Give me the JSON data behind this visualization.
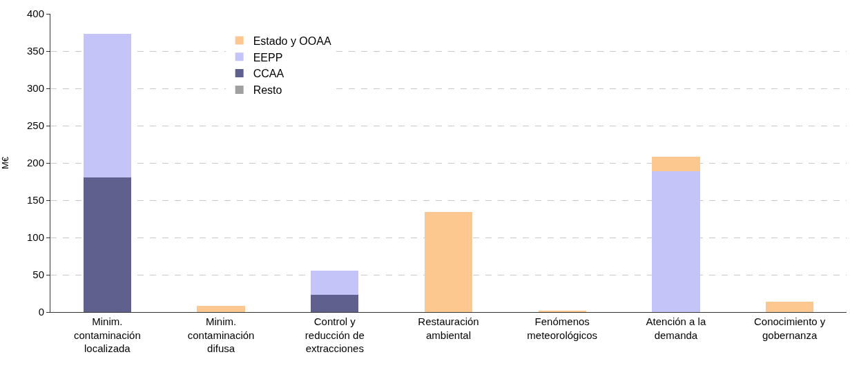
{
  "chart_data": {
    "type": "bar",
    "stacked": true,
    "ylabel": "M€",
    "categories": [
      "Minim. contaminación localizada",
      "Minim. contaminación difusa",
      "Control y reducción de extracciones",
      "Restauración ambiental",
      "Fenómenos meteorológicos",
      "Atención a la demanda",
      "Conocimiento y gobernanza"
    ],
    "series": [
      {
        "name": "Resto",
        "color": "#a0a0a0",
        "values": [
          0,
          0,
          0,
          0,
          0,
          0,
          0
        ]
      },
      {
        "name": "CCAA",
        "color": "#60608f",
        "values": [
          181,
          null,
          23,
          null,
          0,
          0,
          null
        ]
      },
      {
        "name": "EEPP",
        "color": "#c4c4f8",
        "values": [
          192,
          0,
          33,
          0,
          0,
          189,
          0
        ]
      },
      {
        "name": "Estado y OOAA",
        "color": "#fcc890",
        "values": [
          0,
          8,
          0,
          134,
          2,
          19,
          14
        ]
      }
    ],
    "ylim": [
      0,
      400
    ],
    "yticks": [
      0,
      50,
      100,
      150,
      200,
      250,
      300,
      350,
      400
    ],
    "grid": "y",
    "legend": "top left"
  }
}
